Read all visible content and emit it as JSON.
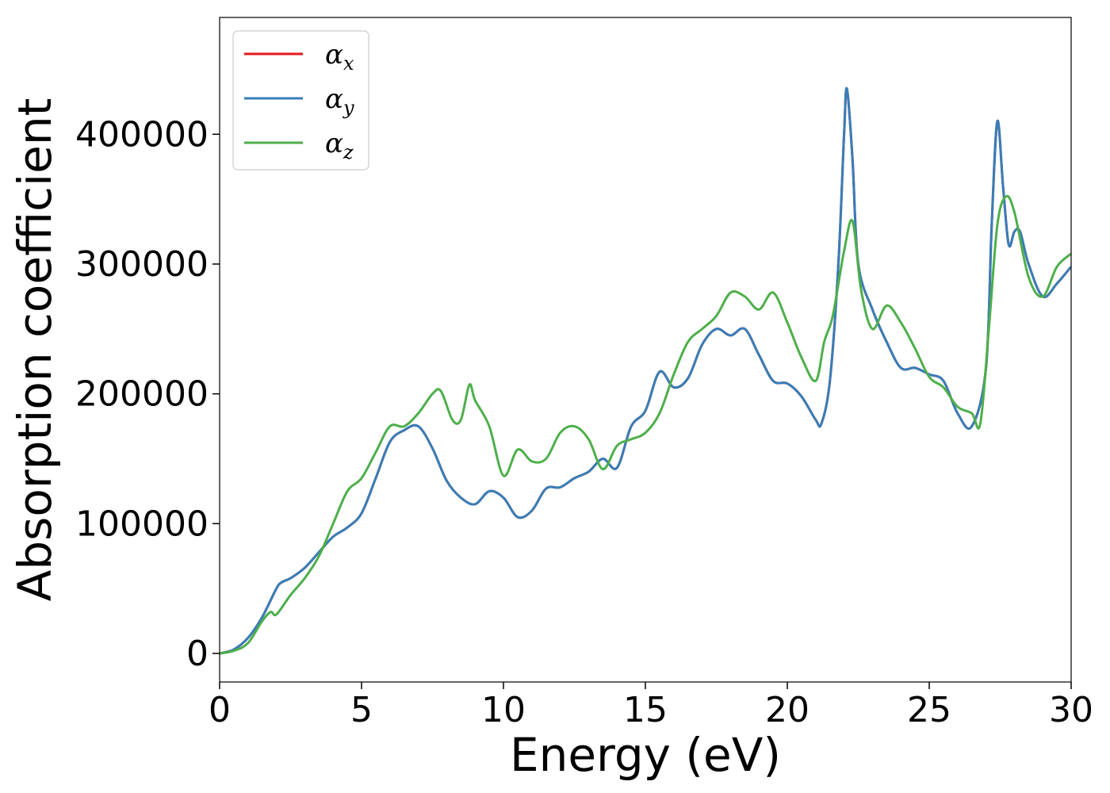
{
  "chart_data": {
    "type": "line",
    "title": "",
    "xlabel": "Energy (eV)",
    "ylabel": "Absorption coefficient",
    "xlim": [
      0,
      30
    ],
    "ylim": [
      -22000,
      490000
    ],
    "xticks": [
      0,
      5,
      10,
      15,
      20,
      25,
      30
    ],
    "yticks": [
      0,
      100000,
      200000,
      300000,
      400000
    ],
    "grid": false,
    "legend_position": "top-left",
    "colors": {
      "x": "#e41a1c",
      "y": "#377eb8",
      "z": "#4daf4a"
    },
    "series": [
      {
        "name": "αx",
        "legend_base": "α",
        "legend_sub": "x",
        "key": "x",
        "x": [
          0,
          0.5,
          1,
          1.5,
          2,
          2.2,
          2.5,
          3,
          3.5,
          4,
          4.5,
          5,
          5.5,
          6,
          6.5,
          7,
          7.5,
          8,
          8.5,
          9,
          9.5,
          10,
          10.5,
          11,
          11.5,
          12,
          12.5,
          13,
          13.5,
          14,
          14.5,
          15,
          15.5,
          16,
          16.5,
          17,
          17.5,
          18,
          18.5,
          19,
          19.5,
          20,
          20.5,
          21,
          21.2,
          21.5,
          21.8,
          22,
          22.1,
          22.3,
          22.5,
          23,
          23.5,
          24,
          24.5,
          25,
          25.5,
          26,
          26.5,
          27,
          27.2,
          27.4,
          27.6,
          27.8,
          28,
          28.2,
          28.5,
          29,
          29.5,
          30
        ],
        "y": [
          0,
          3000,
          12000,
          28000,
          50000,
          55000,
          58000,
          66000,
          78000,
          90000,
          97000,
          108000,
          135000,
          163000,
          172000,
          175000,
          158000,
          133000,
          120000,
          115000,
          125000,
          120000,
          105000,
          110000,
          127000,
          128000,
          135000,
          140000,
          150000,
          143000,
          175000,
          187000,
          217000,
          205000,
          212000,
          238000,
          250000,
          245000,
          250000,
          230000,
          210000,
          208000,
          198000,
          180000,
          177000,
          210000,
          300000,
          400000,
          435000,
          380000,
          300000,
          265000,
          240000,
          220000,
          220000,
          215000,
          210000,
          185000,
          175000,
          220000,
          330000,
          410000,
          360000,
          315000,
          325000,
          325000,
          300000,
          275000,
          285000,
          298000
        ]
      },
      {
        "name": "αy",
        "legend_base": "α",
        "legend_sub": "y",
        "key": "y",
        "x": [
          0,
          0.5,
          1,
          1.5,
          2,
          2.2,
          2.5,
          3,
          3.5,
          4,
          4.5,
          5,
          5.5,
          6,
          6.5,
          7,
          7.5,
          8,
          8.5,
          9,
          9.5,
          10,
          10.5,
          11,
          11.5,
          12,
          12.5,
          13,
          13.5,
          14,
          14.5,
          15,
          15.5,
          16,
          16.5,
          17,
          17.5,
          18,
          18.5,
          19,
          19.5,
          20,
          20.5,
          21,
          21.2,
          21.5,
          21.8,
          22,
          22.1,
          22.3,
          22.5,
          23,
          23.5,
          24,
          24.5,
          25,
          25.5,
          26,
          26.5,
          27,
          27.2,
          27.4,
          27.6,
          27.8,
          28,
          28.2,
          28.5,
          29,
          29.5,
          30
        ],
        "y": [
          0,
          3000,
          12000,
          28000,
          50000,
          55000,
          58000,
          66000,
          78000,
          90000,
          97000,
          108000,
          135000,
          163000,
          172000,
          175000,
          158000,
          133000,
          120000,
          115000,
          125000,
          120000,
          105000,
          110000,
          127000,
          128000,
          135000,
          140000,
          150000,
          143000,
          175000,
          187000,
          217000,
          205000,
          212000,
          238000,
          250000,
          245000,
          250000,
          230000,
          210000,
          208000,
          198000,
          180000,
          177000,
          210000,
          300000,
          400000,
          435000,
          380000,
          300000,
          265000,
          240000,
          220000,
          220000,
          215000,
          210000,
          185000,
          175000,
          220000,
          330000,
          410000,
          360000,
          315000,
          325000,
          325000,
          300000,
          275000,
          285000,
          298000
        ]
      },
      {
        "name": "αz",
        "legend_base": "α",
        "legend_sub": "z",
        "key": "z",
        "x": [
          0,
          0.5,
          1,
          1.5,
          1.8,
          2,
          2.5,
          3,
          3.5,
          4,
          4.5,
          5,
          5.5,
          6,
          6.5,
          7,
          7.5,
          7.8,
          8.2,
          8.5,
          8.8,
          9,
          9.5,
          10,
          10.5,
          11,
          11.5,
          12,
          12.5,
          13,
          13.5,
          14,
          14.5,
          15,
          15.5,
          16,
          16.5,
          17,
          17.5,
          18,
          18.5,
          19,
          19.5,
          20,
          20.5,
          21,
          21.3,
          21.6,
          22,
          22.3,
          22.6,
          23,
          23.5,
          24,
          24.5,
          25,
          25.5,
          26,
          26.5,
          26.8,
          27.1,
          27.4,
          27.7,
          28,
          28.5,
          29,
          29.5,
          30
        ],
        "y": [
          0,
          2000,
          8000,
          25000,
          32000,
          30000,
          45000,
          58000,
          75000,
          100000,
          125000,
          135000,
          155000,
          175000,
          175000,
          185000,
          200000,
          202000,
          180000,
          180000,
          207000,
          195000,
          175000,
          137000,
          157000,
          148000,
          150000,
          170000,
          175000,
          165000,
          142000,
          160000,
          165000,
          170000,
          185000,
          215000,
          240000,
          250000,
          260000,
          278000,
          275000,
          265000,
          278000,
          255000,
          228000,
          210000,
          240000,
          260000,
          310000,
          333000,
          280000,
          250000,
          268000,
          255000,
          235000,
          213000,
          205000,
          190000,
          185000,
          177000,
          250000,
          330000,
          352000,
          340000,
          290000,
          275000,
          298000,
          308000
        ]
      }
    ]
  }
}
